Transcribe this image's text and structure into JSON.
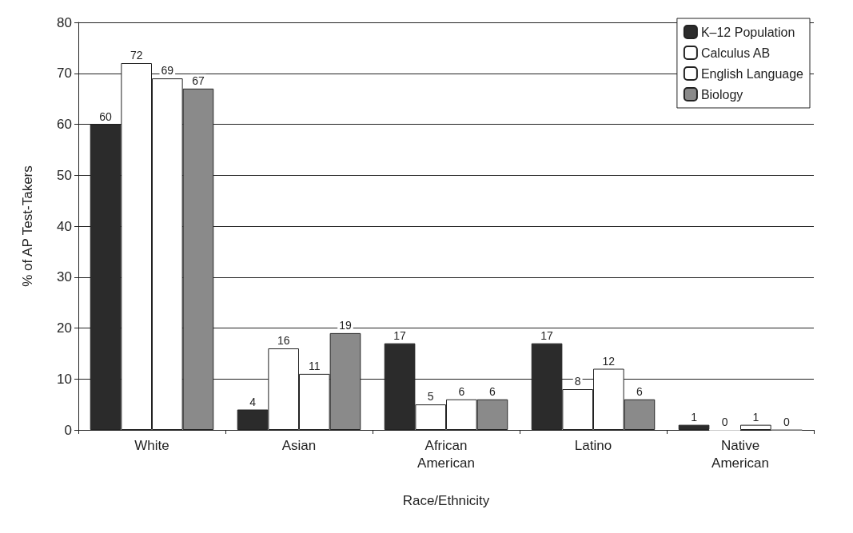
{
  "chart_data": {
    "type": "bar",
    "xlabel": "Race/Ethnicity",
    "ylabel": "% of AP Test-Takers",
    "categories": [
      "White",
      "Asian",
      "African\nAmerican",
      "Latino",
      "Native\nAmerican"
    ],
    "series": [
      {
        "name": "K–12 Population",
        "color": "#2b2b2b",
        "values": [
          60,
          4,
          17,
          17,
          1
        ]
      },
      {
        "name": "Calculus AB",
        "color": "#ffffff",
        "values": [
          72,
          16,
          5,
          8,
          0
        ]
      },
      {
        "name": "English Language",
        "color": "#ffffff",
        "values": [
          69,
          11,
          6,
          12,
          1
        ]
      },
      {
        "name": "Biology",
        "color": "#8a8a8a",
        "values": [
          67,
          19,
          6,
          6,
          0
        ]
      }
    ],
    "ylim": [
      0,
      80
    ],
    "yticks": [
      0,
      10,
      20,
      30,
      40,
      50,
      60,
      70,
      80
    ],
    "grid": "y",
    "legend": "top right",
    "data_labels": true
  }
}
